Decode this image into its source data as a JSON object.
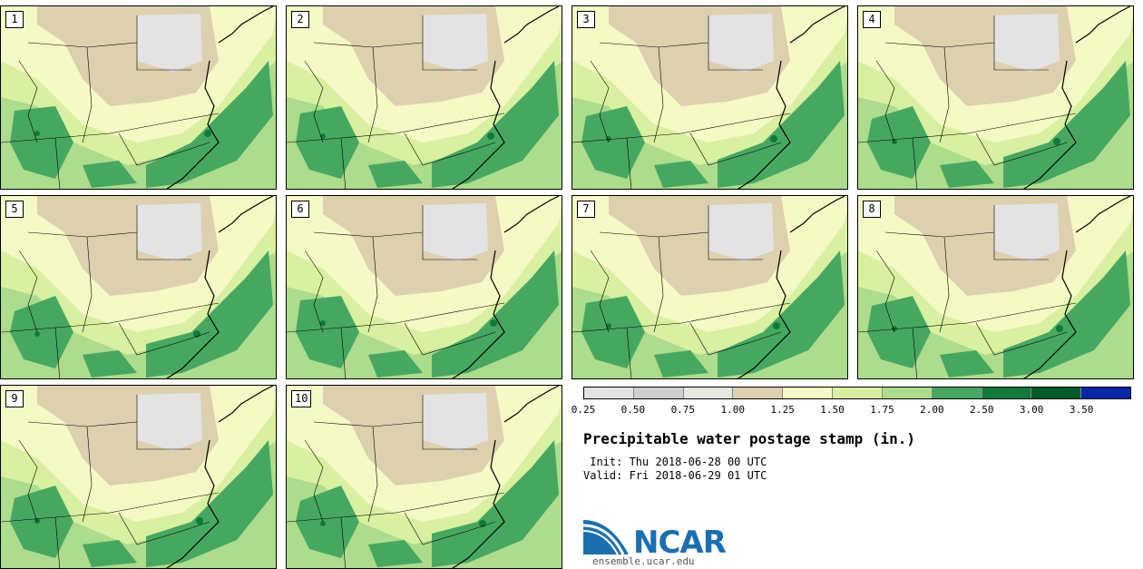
{
  "panels": [
    {
      "label": "1"
    },
    {
      "label": "2"
    },
    {
      "label": "3"
    },
    {
      "label": "4"
    },
    {
      "label": "5"
    },
    {
      "label": "6"
    },
    {
      "label": "7"
    },
    {
      "label": "8"
    },
    {
      "label": "9"
    },
    {
      "label": "10"
    }
  ],
  "legend": {
    "colors": [
      "#e3e3e3",
      "#cfcfcf",
      "#e8e8e2",
      "#ddd0ae",
      "#f5f9c5",
      "#d8f0a0",
      "#acdc8c",
      "#46a860",
      "#0f7a3a",
      "#005c2a",
      "#0628a8"
    ],
    "ticks": [
      "0.25",
      "0.50",
      "0.75",
      "1.00",
      "1.25",
      "1.50",
      "1.75",
      "2.00",
      "2.50",
      "3.00",
      "3.50"
    ]
  },
  "title": "Precipitable water postage stamp (in.)",
  "init": " Init: Thu 2018-06-28 00 UTC",
  "valid": "Valid: Fri 2018-06-29 01 UTC",
  "logo_text": "NCAR",
  "url": "ensemble.ucar.edu",
  "field_colors": {
    "low": "#e3e3e3",
    "dry": "#ddd0ae",
    "light": "#f5f9c5",
    "pale": "#d8f0a0",
    "mid": "#acdc8c",
    "moist": "#46a860",
    "wet": "#0f7a3a"
  }
}
